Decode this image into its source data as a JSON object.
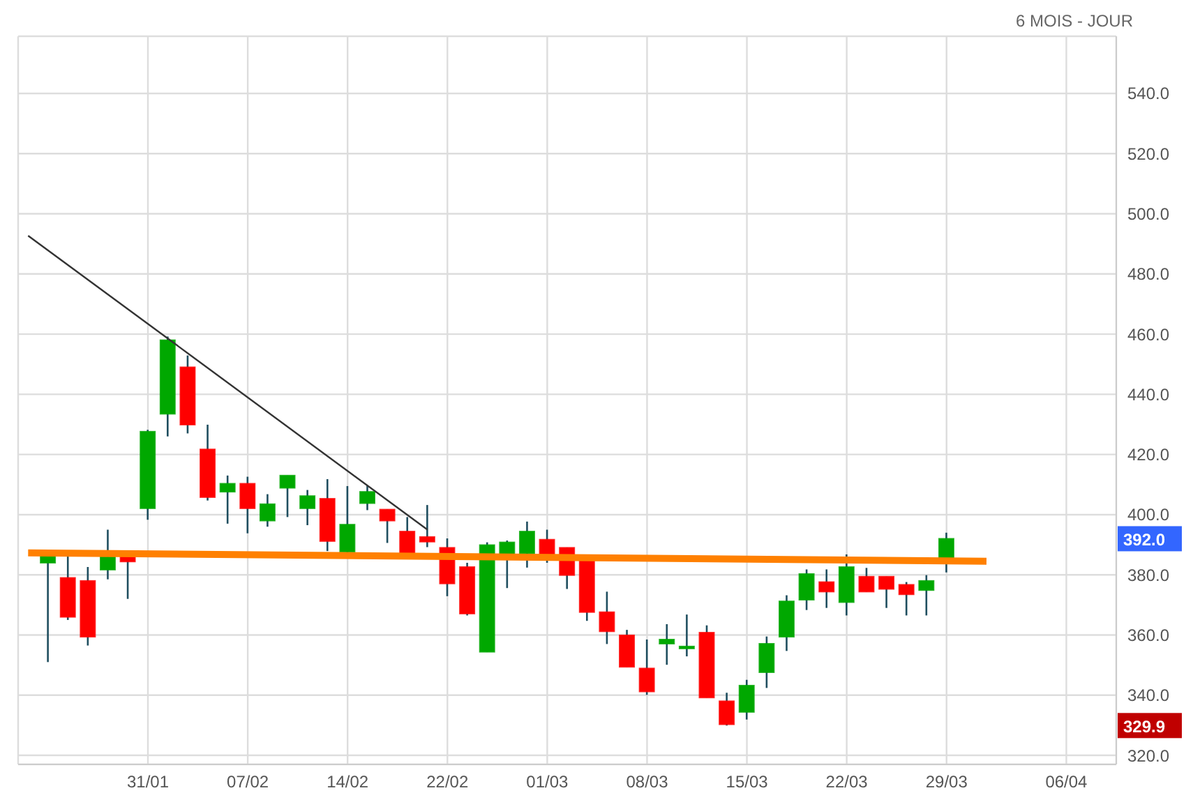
{
  "chart_data": {
    "type": "candlestick",
    "subtitle": "6 MOIS - JOUR",
    "categories": [
      null,
      null,
      null,
      null,
      null,
      null,
      "31/01",
      null,
      null,
      null,
      null,
      "07/02",
      null,
      null,
      null,
      null,
      "14/02",
      null,
      null,
      null,
      null,
      "22/02",
      null,
      null,
      null,
      null,
      "01/03",
      null,
      null,
      null,
      null,
      "08/03",
      null,
      null,
      null,
      null,
      "15/03",
      null,
      null,
      null,
      null,
      "22/03",
      null,
      null,
      null,
      null,
      "29/03",
      null,
      null,
      null,
      null,
      null,
      "06/04",
      null,
      null
    ],
    "ohlc": [
      null,
      [
        384.0,
        387,
        351,
        386.5
      ],
      [
        379,
        386.5,
        365,
        366
      ],
      [
        378,
        382.6,
        356.5,
        359.4
      ],
      [
        381.7,
        395,
        378.5,
        386
      ],
      [
        386.4,
        386.4,
        372,
        384.4
      ],
      [
        402.1,
        428.2,
        398.3,
        427.6
      ],
      [
        433.5,
        459.2,
        426,
        458
      ],
      [
        449,
        452.9,
        427,
        429.9
      ],
      [
        421.7,
        429.9,
        404.7,
        405.8
      ],
      [
        407.6,
        413,
        397,
        410.3
      ],
      [
        410.3,
        412.6,
        393.8,
        402.1
      ],
      [
        398,
        406.8,
        396,
        403.5
      ],
      [
        408.9,
        413,
        399.2,
        413
      ],
      [
        402.1,
        408.2,
        396.5,
        406.2
      ],
      [
        405.3,
        411.8,
        387.9,
        391.2
      ],
      [
        387.6,
        409.5,
        387.3,
        396.7
      ],
      [
        403.8,
        409.7,
        401.5,
        407.6
      ],
      [
        401.7,
        401.7,
        390.6,
        398
      ],
      [
        394.4,
        399.2,
        386,
        386.5
      ],
      [
        392.6,
        403.2,
        389.2,
        391
      ],
      [
        389,
        392.1,
        372.9,
        377.1
      ],
      [
        382.6,
        384,
        366.5,
        367.1
      ],
      [
        354.4,
        390.8,
        354.4,
        389.9
      ],
      [
        386.7,
        391.4,
        375.6,
        390.8
      ],
      [
        387.1,
        397.7,
        382.4,
        394.4
      ],
      [
        391.7,
        395,
        384,
        385
      ],
      [
        389,
        389,
        375.3,
        379.9
      ],
      [
        386,
        386,
        364.7,
        367.6
      ],
      [
        367.6,
        374.4,
        357,
        361.2
      ],
      [
        359.9,
        361.7,
        349.4,
        349.4
      ],
      [
        348.9,
        358.5,
        340.1,
        341.2
      ],
      [
        357.1,
        363.6,
        350.1,
        358.5
      ],
      [
        355.8,
        366.8,
        352.9,
        356.2
      ],
      [
        360.8,
        363.2,
        339.2,
        339.2
      ],
      [
        338,
        340.8,
        329.9,
        330.3
      ],
      [
        334.4,
        345.1,
        331.9,
        343.2
      ],
      [
        347.6,
        359.5,
        342.4,
        357.1
      ],
      [
        359.4,
        373.2,
        354.7,
        371.2
      ],
      [
        371.7,
        381.8,
        368.3,
        380.3
      ],
      [
        377.6,
        381.8,
        369,
        374.4
      ],
      [
        370.9,
        386.8,
        366.5,
        382.6
      ],
      [
        379.4,
        382.3,
        374.4,
        374.4
      ],
      [
        379.4,
        379.4,
        369,
        375.3
      ],
      [
        376.7,
        377.6,
        366.5,
        373.5
      ],
      [
        374.9,
        379.9,
        366.5,
        378
      ],
      [
        385.3,
        394,
        380.8,
        392
      ],
      null,
      null,
      null,
      null,
      null,
      null,
      null,
      null
    ],
    "colors": [
      null,
      "#00a800",
      "#ff0000",
      "#ff0000",
      "#00a800",
      "#ff0000",
      "#00a800",
      "#00a800",
      "#ff0000",
      "#ff0000",
      "#00a800",
      "#ff0000",
      "#00a800",
      "#00a800",
      "#00a800",
      "#ff0000",
      "#00a800",
      "#00a800",
      "#ff0000",
      "#ff0000",
      "#ff0000",
      "#ff0000",
      "#ff0000",
      "#00a800",
      "#00a800",
      "#00a800",
      "#ff0000",
      "#ff0000",
      "#ff0000",
      "#ff0000",
      "#ff0000",
      "#ff0000",
      "#00a800",
      "#00a800",
      "#ff0000",
      "#ff0000",
      "#00a800",
      "#00a800",
      "#00a800",
      "#00a800",
      "#ff0000",
      "#00a800",
      "#ff0000",
      "#ff0000",
      "#ff0000",
      "#00a800",
      "#00a800",
      null,
      null,
      null,
      null,
      null,
      null,
      null,
      null
    ],
    "series": [
      {
        "type": "line",
        "color": "#333333",
        "values": [
          492.7,
          null,
          null,
          null,
          null,
          null,
          null,
          null,
          null,
          null,
          null,
          null,
          null,
          null,
          null,
          null,
          null,
          null,
          null,
          null,
          395,
          null,
          null,
          null,
          null,
          null,
          null,
          null,
          null,
          null,
          null,
          null,
          null,
          null,
          null,
          null,
          null,
          null,
          null,
          null,
          null,
          null,
          null,
          null,
          null,
          null,
          null,
          null,
          null,
          null,
          null,
          null,
          null,
          null,
          null
        ]
      },
      {
        "type": "line",
        "color": "#ff8000",
        "values": [
          387.3,
          null,
          null,
          null,
          null,
          null,
          null,
          null,
          null,
          null,
          null,
          null,
          null,
          null,
          null,
          null,
          null,
          null,
          null,
          null,
          null,
          null,
          null,
          null,
          null,
          null,
          null,
          null,
          null,
          null,
          null,
          null,
          null,
          null,
          null,
          null,
          null,
          null,
          null,
          null,
          null,
          null,
          null,
          null,
          null,
          null,
          null,
          null,
          384.5,
          null,
          null,
          null,
          null,
          null,
          null
        ]
      }
    ],
    "ylim": [
      317,
      559
    ],
    "yticks": [
      {
        "value": 320,
        "label": "320.0"
      },
      {
        "value": 340,
        "label": "340.0"
      },
      {
        "value": 360,
        "label": "360.0"
      },
      {
        "value": 380,
        "label": "380.0"
      },
      {
        "value": 400,
        "label": "400.0"
      },
      {
        "value": 420,
        "label": "420.0"
      },
      {
        "value": 440,
        "label": "440.0"
      },
      {
        "value": 460,
        "label": "460.0"
      },
      {
        "value": 480,
        "label": "480.0"
      },
      {
        "value": 500,
        "label": "500.0"
      },
      {
        "value": 520,
        "label": "520.0"
      },
      {
        "value": 540,
        "label": "540.0"
      }
    ],
    "annotations": [
      "392.0",
      "329.9"
    ],
    "grid": true
  }
}
